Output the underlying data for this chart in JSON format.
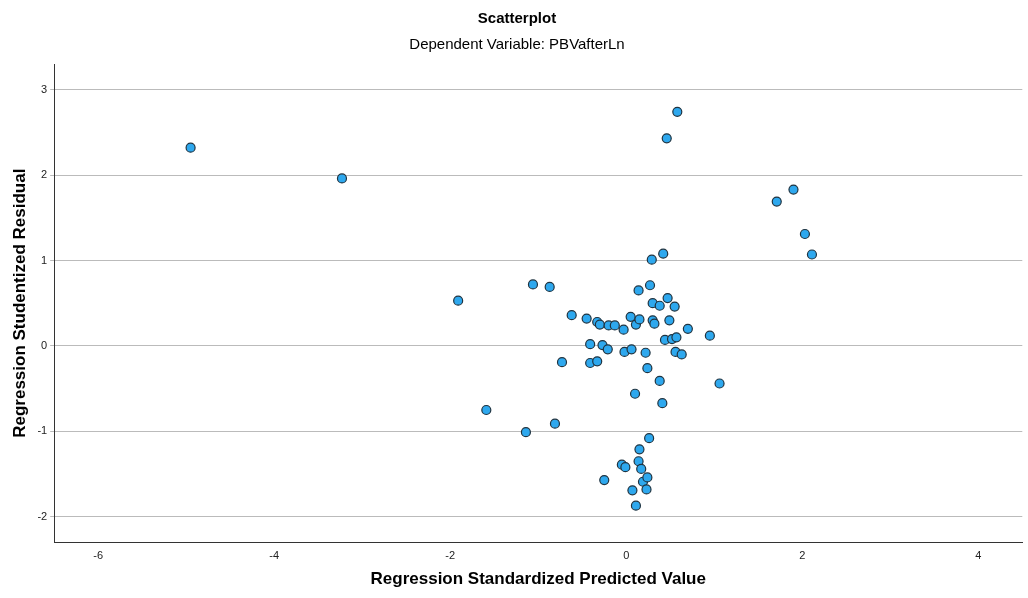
{
  "chart_data": {
    "type": "scatter",
    "title": "Scatterplot",
    "subtitle": "Dependent Variable: PBVafterLn",
    "xlabel": "Regression Standardized Predicted Value",
    "ylabel": "Regression Studentized Residual",
    "xlim": [
      -6.5,
      4.5
    ],
    "ylim": [
      -2.3,
      3.3
    ],
    "xticks": [
      -6,
      -4,
      -2,
      0,
      2,
      4
    ],
    "yticks": [
      -2,
      -1,
      0,
      1,
      2,
      3
    ],
    "grid": "y",
    "legend": false,
    "marker": "circle",
    "series": [
      {
        "color": "#2ea8ee",
        "x": [
          -4.95,
          -3.23,
          -1.91,
          -1.59,
          -1.14,
          -1.06,
          -0.87,
          -0.81,
          -0.73,
          -0.62,
          -0.45,
          -0.41,
          -0.41,
          -0.33,
          -0.3,
          -0.33,
          -0.27,
          -0.25,
          -0.21,
          -0.2,
          -0.13,
          -0.03,
          -0.02,
          -0.05,
          -0.01,
          0.05,
          0.06,
          0.07,
          0.1,
          0.11,
          0.14,
          0.15,
          0.11,
          0.14,
          0.15,
          0.17,
          0.19,
          0.22,
          0.23,
          0.24,
          0.24,
          0.26,
          0.27,
          0.29,
          0.3,
          0.3,
          0.32,
          0.38,
          0.38,
          0.41,
          0.42,
          0.44,
          0.46,
          0.47,
          0.49,
          0.52,
          0.55,
          0.56,
          0.57,
          0.58,
          0.63,
          0.7,
          0.95,
          1.06,
          1.71,
          1.9,
          2.03,
          2.11
        ],
        "values": [
          2.32,
          1.96,
          0.53,
          -0.75,
          -1.01,
          0.72,
          0.69,
          -0.91,
          -0.19,
          0.36,
          0.32,
          0.02,
          -0.2,
          0.28,
          0.25,
          -0.18,
          0.01,
          -1.57,
          -0.04,
          0.24,
          0.24,
          0.19,
          -0.07,
          -1.39,
          -1.42,
          0.34,
          -0.04,
          -1.69,
          -0.56,
          0.25,
          0.65,
          0.31,
          -1.87,
          -1.35,
          -1.21,
          -1.44,
          -1.59,
          -0.08,
          -1.68,
          -1.54,
          -0.26,
          -1.08,
          0.71,
          1.01,
          0.5,
          0.3,
          0.26,
          -0.41,
          0.47,
          -0.67,
          1.08,
          0.07,
          2.43,
          0.56,
          0.3,
          0.08,
          0.46,
          -0.07,
          0.1,
          2.74,
          -0.1,
          0.2,
          0.12,
          -0.44,
          1.69,
          1.83,
          1.31,
          1.07
        ]
      }
    ]
  }
}
